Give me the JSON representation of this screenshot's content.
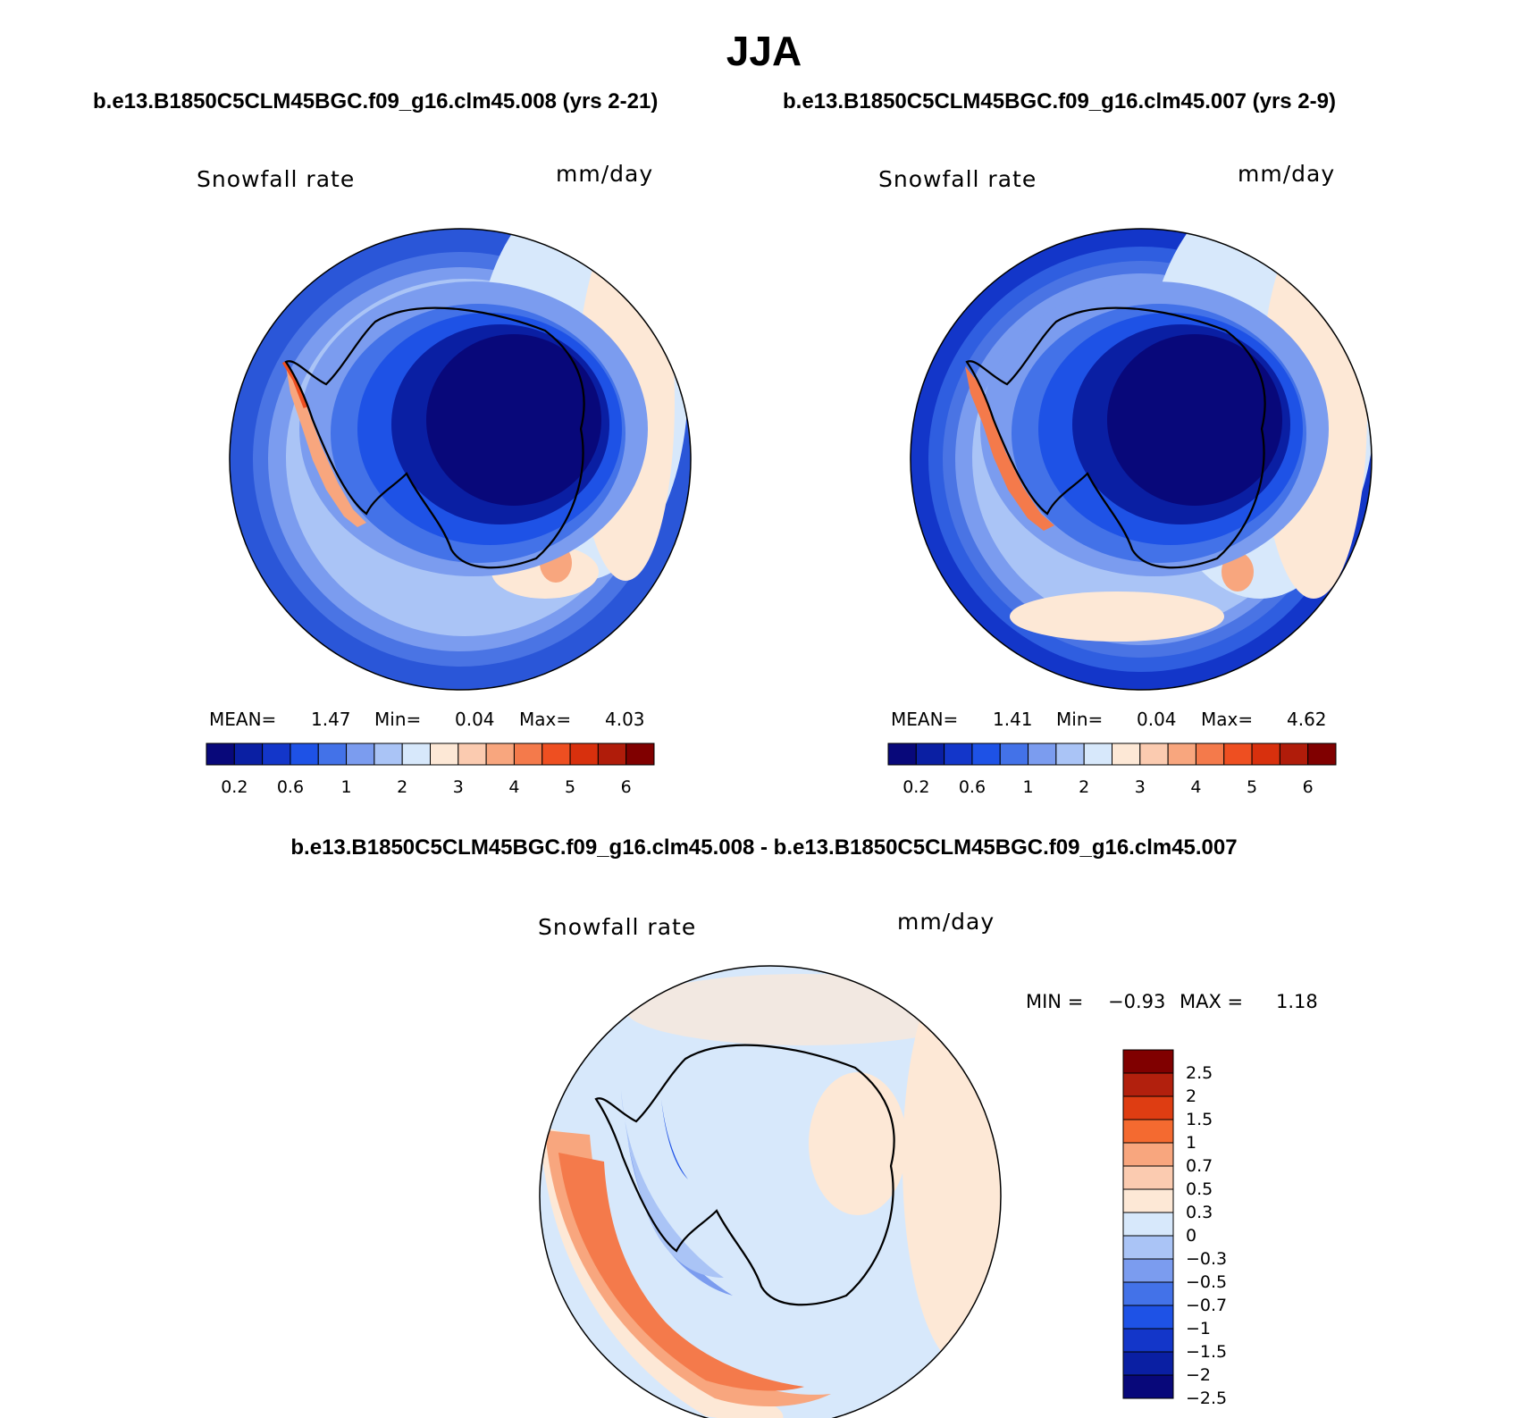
{
  "title": "JJA",
  "panels": [
    {
      "case_label": "b.e13.B1850C5CLM45BGC.f09_g16.clm45.008 (yrs 2-21)",
      "variable": "Snowfall rate",
      "units": "mm/day",
      "stats": {
        "mean_label": "MEAN=",
        "mean": "1.47",
        "min_label": "Min=",
        "min": "0.04",
        "max_label": "Max=",
        "max": "4.03"
      }
    },
    {
      "case_label": "b.e13.B1850C5CLM45BGC.f09_g16.clm45.007 (yrs 2-9)",
      "variable": "Snowfall rate",
      "units": "mm/day",
      "stats": {
        "mean_label": "MEAN=",
        "mean": "1.41",
        "min_label": "Min=",
        "min": "0.04",
        "max_label": "Max=",
        "max": "4.62"
      }
    }
  ],
  "diff_panel": {
    "case_label": "b.e13.B1850C5CLM45BGC.f09_g16.clm45.008 - b.e13.B1850C5CLM45BGC.f09_g16.clm45.007",
    "variable": "Snowfall rate",
    "units": "mm/day",
    "minmax": {
      "min_label": "MIN =",
      "min": "−0.93",
      "max_label": "MAX =",
      "max": "1.18"
    }
  },
  "abs_colorbar": {
    "colors": [
      "#08087a",
      "#0a1fa3",
      "#1336c9",
      "#1e52e6",
      "#4372e8",
      "#7b9cef",
      "#aac4f6",
      "#d7e8fb",
      "#fde8d6",
      "#fbcbb0",
      "#f8a67e",
      "#f47a4b",
      "#ee4f21",
      "#d8300d",
      "#b01c0a",
      "#800000"
    ],
    "tick_labels": [
      "0.2",
      "0.6",
      "1",
      "2",
      "3",
      "4",
      "5",
      "6"
    ]
  },
  "diff_colorbar": {
    "colors": [
      "#800000",
      "#b2200d",
      "#de3d12",
      "#f46a30",
      "#f8a67e",
      "#fbcbb0",
      "#fde8d6",
      "#d7e8fb",
      "#aac4f6",
      "#7b9cef",
      "#4372e8",
      "#1e52e6",
      "#1336c9",
      "#0a1fa3",
      "#08087a"
    ],
    "tick_labels": [
      "2.5",
      "2",
      "1.5",
      "1",
      "0.7",
      "0.5",
      "0.3",
      "0",
      "−0.3",
      "−0.5",
      "−0.7",
      "−1",
      "−1.5",
      "−2",
      "−2.5"
    ]
  }
}
